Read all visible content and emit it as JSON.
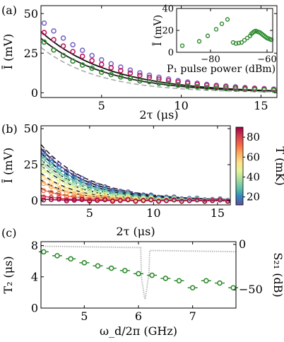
{
  "panel_labels": [
    "(a)",
    "(b)",
    "(c)"
  ],
  "colorbar": {
    "label": "T (mK)",
    "ticks": [
      "80",
      "60",
      "40",
      "20"
    ],
    "colors": [
      "#5e4fa2",
      "#3288bd",
      "#66c2a5",
      "#abdda4",
      "#e6f598",
      "#fee08b",
      "#fdae61",
      "#f46d43",
      "#d53e4f",
      "#9e0142"
    ]
  },
  "chart_data": [
    {
      "id": "a",
      "type": "scatter",
      "xlabel": "2τ (μs)",
      "ylabel": "Ī (mV)",
      "xlim": [
        1.2,
        16
      ],
      "ylim": [
        -3,
        55
      ],
      "xticks": [
        5,
        10,
        15
      ],
      "yticks": [
        0,
        25,
        50
      ],
      "series": [
        {
          "color": "#7b68c4",
          "line": "#1a237e",
          "dashed": false,
          "x": [
            1.4,
            2.0,
            2.6,
            3.2,
            3.8,
            4.4,
            5.0,
            5.6,
            6.2,
            6.8,
            7.4,
            8.0,
            8.6,
            9.2,
            9.8,
            10.4,
            11.0,
            11.6,
            12.2,
            12.8,
            13.4,
            14.0,
            14.6,
            15.2,
            15.8
          ],
          "y": [
            44,
            39,
            34.5,
            30.3,
            26.8,
            23.5,
            20.8,
            18.3,
            16.2,
            14.3,
            12.6,
            11.1,
            9.8,
            8.7,
            7.7,
            6.8,
            6.0,
            5.3,
            4.7,
            4.2,
            3.7,
            3.3,
            2.9,
            2.6,
            2.3
          ]
        },
        {
          "color": "#c2185b",
          "line": "#b03a5e",
          "dashed": false,
          "x": [
            1.4,
            2.0,
            2.6,
            3.2,
            3.8,
            4.4,
            5.0,
            5.6,
            6.2,
            6.8,
            7.4,
            8.0,
            8.6,
            9.2,
            9.8,
            10.4,
            11.0,
            11.6,
            12.2,
            12.8,
            13.4,
            14.0,
            14.6,
            15.2,
            15.8
          ],
          "y": [
            38,
            33.5,
            29.5,
            26,
            23,
            20.3,
            17.9,
            15.8,
            14.0,
            12.4,
            11,
            9.7,
            8.6,
            7.6,
            6.8,
            6.0,
            5.3,
            4.7,
            4.2,
            3.7,
            3.3,
            2.9,
            2.6,
            2.3,
            2.1
          ]
        },
        {
          "color": "#2e8b2e",
          "line": "#aaaaaa",
          "dashed": true,
          "x": [
            1.4,
            2.0,
            2.6,
            3.2,
            3.8,
            4.4,
            5.0,
            5.6,
            6.2,
            6.8,
            7.4,
            8.0,
            8.6,
            9.2,
            9.8,
            10.4,
            11.0,
            11.6,
            12.2,
            12.8,
            13.4,
            14.0,
            14.6,
            15.2,
            15.8
          ],
          "y": [
            32,
            27,
            23.5,
            20,
            17.5,
            15.5,
            13,
            11.5,
            10,
            9,
            7.5,
            7,
            6,
            5.5,
            4.8,
            4,
            3.8,
            3.2,
            3,
            2.6,
            2.4,
            2.2,
            2,
            1.8,
            1.6
          ]
        }
      ],
      "fit_curves": [
        {
          "color": "#111111",
          "dashed": false,
          "A": 51,
          "tau": 4.3
        },
        {
          "color": "#222222",
          "dashed": false,
          "A": 46,
          "tau": 4.1
        },
        {
          "color": "#aaaaaa",
          "dashed": true,
          "A": 40,
          "tau": 3.6
        }
      ]
    },
    {
      "id": "a-inset",
      "type": "scatter",
      "xlabel": "P₁ pulse power (dBm)",
      "ylabel": "Ī (mV)",
      "xlim": [
        -92,
        -58
      ],
      "ylim": [
        0,
        40
      ],
      "xticks": [
        -80,
        -60
      ],
      "xtick_labels": [
        "−80",
        "−60"
      ],
      "yticks": [
        0,
        20,
        40
      ],
      "series": [
        {
          "color": "#2e8b2e",
          "x": [
            -90,
            -84,
            -81,
            -78,
            -76,
            -74,
            -72,
            -71,
            -70,
            -69,
            -68,
            -67,
            -66,
            -65.5,
            -65,
            -64.5,
            -64,
            -63.5,
            -63,
            -62.5,
            -62,
            -61.5,
            -61,
            -60.5,
            -60,
            -59.5,
            -59,
            -58.5
          ],
          "y": [
            6,
            10,
            15,
            21,
            26,
            30,
            9,
            8,
            8.5,
            9,
            11,
            13,
            15,
            17,
            18,
            19,
            19.5,
            19,
            18.5,
            18,
            17,
            16,
            15,
            14,
            13,
            12.5,
            12,
            11.5
          ]
        }
      ]
    },
    {
      "id": "b",
      "type": "scatter",
      "xlabel": "2τ (μs)",
      "ylabel": "Ī (mV)",
      "xlim": [
        1.2,
        16
      ],
      "ylim": [
        -3,
        52
      ],
      "xticks": [
        5,
        10,
        15
      ],
      "yticks": [
        0,
        25,
        50
      ],
      "series": [
        {
          "color": "#5e4fa2",
          "A": 51,
          "tau": 3.6
        },
        {
          "color": "#3288bd",
          "A": 48,
          "tau": 3.4
        },
        {
          "color": "#66c2a5",
          "A": 45,
          "tau": 3.2
        },
        {
          "color": "#abdda4",
          "A": 40,
          "tau": 3.0
        },
        {
          "color": "#e6f598",
          "A": 35,
          "tau": 2.8
        },
        {
          "color": "#fee08b",
          "A": 28,
          "tau": 2.6
        },
        {
          "color": "#fdae61",
          "A": 22,
          "tau": 2.4
        },
        {
          "color": "#f46d43",
          "A": 14,
          "tau": 2.2
        },
        {
          "color": "#d53e4f",
          "A": 6,
          "tau": 2.0
        },
        {
          "color": "#9e0142",
          "A": 2,
          "tau": 1.8
        }
      ]
    },
    {
      "id": "c",
      "type": "scatter",
      "xlabel": "ω_d/2π (GHz)",
      "ylabel": "T₂ (μs)",
      "ylabel_right": "S₂₁ (dB)",
      "xlim": [
        4.2,
        7.8
      ],
      "ylim": [
        0,
        8.5
      ],
      "ylim_right": [
        -70,
        3
      ],
      "xticks": [
        5,
        6,
        7
      ],
      "yticks": [
        0,
        4,
        8
      ],
      "yticks_right": [
        0,
        -50
      ],
      "ytick_right_labels": [
        "0",
        "−50"
      ],
      "series": [
        {
          "name": "T2",
          "color": "#2e8b2e",
          "x": [
            4.25,
            4.5,
            4.75,
            5.0,
            5.25,
            5.5,
            5.75,
            6.0,
            6.25,
            6.5,
            6.75,
            7.0,
            7.25,
            7.5,
            7.75
          ],
          "y": [
            7.2,
            6.7,
            6.3,
            5.8,
            5.4,
            5.1,
            4.8,
            4.4,
            4.2,
            3.8,
            3.5,
            2.6,
            3.5,
            3.2,
            2.6
          ]
        }
      ]
    }
  ]
}
